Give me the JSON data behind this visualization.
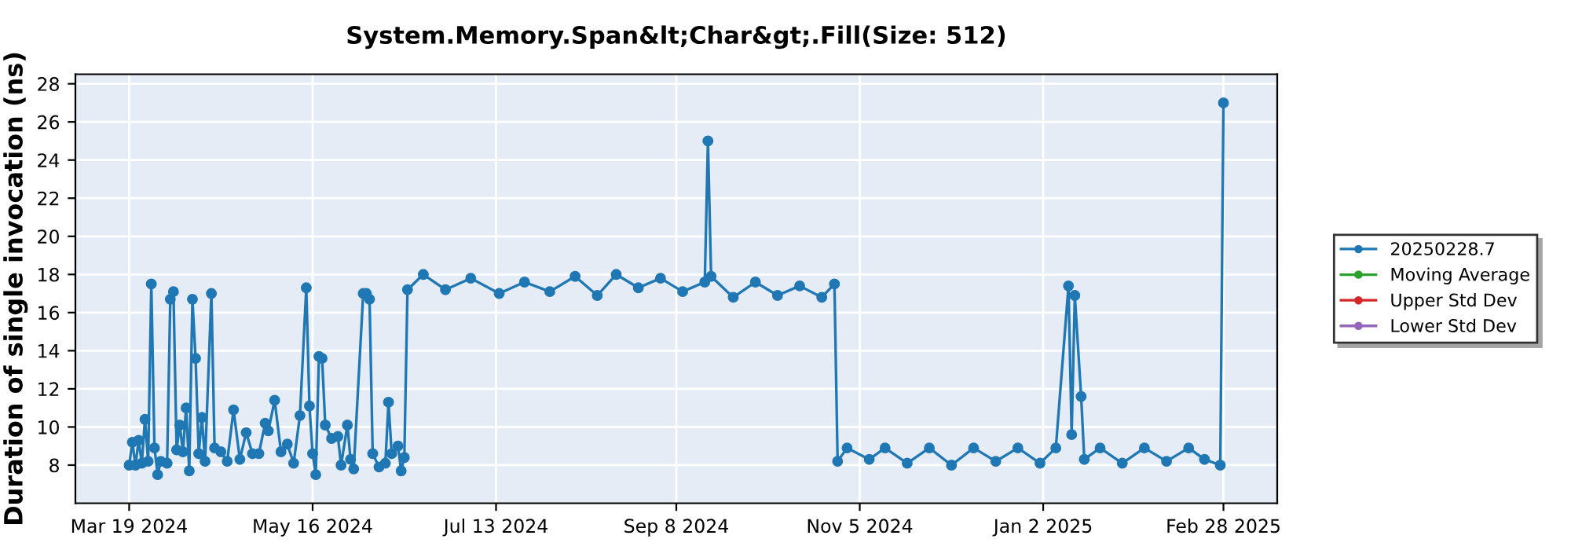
{
  "chart_data": {
    "type": "line",
    "title": "System.Memory.Span&lt;Char&gt;.Fill(Size: 512)",
    "ylabel": "Duration of single invocation (ns)",
    "xlim": [
      "2024-03-02",
      "2025-03-17"
    ],
    "ylim": [
      6,
      28.5
    ],
    "xticks": [
      {
        "value": "2024-03-19",
        "label": "Mar 19 2024"
      },
      {
        "value": "2024-05-16",
        "label": "May 16 2024"
      },
      {
        "value": "2024-07-13",
        "label": "Jul 13 2024"
      },
      {
        "value": "2024-09-08",
        "label": "Sep 8 2024"
      },
      {
        "value": "2024-11-05",
        "label": "Nov 5 2024"
      },
      {
        "value": "2025-01-02",
        "label": "Jan 2 2025"
      },
      {
        "value": "2025-02-28",
        "label": "Feb 28 2025"
      }
    ],
    "yticks": [
      8,
      10,
      12,
      14,
      16,
      18,
      20,
      22,
      24,
      26,
      28
    ],
    "grid": true,
    "legend": "right",
    "marker": "circle",
    "line_style": "solid",
    "series": [
      {
        "name": "20250228.7",
        "color": "#1f77b4",
        "x": [
          "2024-03-19",
          "2024-03-20",
          "2024-03-21",
          "2024-03-22",
          "2024-03-23",
          "2024-03-24",
          "2024-03-25",
          "2024-03-26",
          "2024-03-27",
          "2024-03-28",
          "2024-03-29",
          "2024-03-31",
          "2024-04-01",
          "2024-04-02",
          "2024-04-03",
          "2024-04-04",
          "2024-04-05",
          "2024-04-06",
          "2024-04-07",
          "2024-04-08",
          "2024-04-09",
          "2024-04-10",
          "2024-04-11",
          "2024-04-12",
          "2024-04-14",
          "2024-04-15",
          "2024-04-17",
          "2024-04-19",
          "2024-04-21",
          "2024-04-23",
          "2024-04-25",
          "2024-04-27",
          "2024-04-29",
          "2024-05-01",
          "2024-05-02",
          "2024-05-04",
          "2024-05-06",
          "2024-05-08",
          "2024-05-10",
          "2024-05-12",
          "2024-05-14",
          "2024-05-15",
          "2024-05-16",
          "2024-05-17",
          "2024-05-18",
          "2024-05-19",
          "2024-05-20",
          "2024-05-22",
          "2024-05-24",
          "2024-05-25",
          "2024-05-27",
          "2024-05-28",
          "2024-05-29",
          "2024-06-01",
          "2024-06-02",
          "2024-06-03",
          "2024-06-04",
          "2024-06-06",
          "2024-06-08",
          "2024-06-09",
          "2024-06-10",
          "2024-06-12",
          "2024-06-13",
          "2024-06-14",
          "2024-06-15",
          "2024-06-20",
          "2024-06-27",
          "2024-07-05",
          "2024-07-14",
          "2024-07-22",
          "2024-07-30",
          "2024-08-07",
          "2024-08-14",
          "2024-08-20",
          "2024-08-27",
          "2024-09-03",
          "2024-09-10",
          "2024-09-17",
          "2024-09-18",
          "2024-09-19",
          "2024-09-26",
          "2024-10-03",
          "2024-10-10",
          "2024-10-17",
          "2024-10-24",
          "2024-10-28",
          "2024-10-29",
          "2024-11-01",
          "2024-11-08",
          "2024-11-13",
          "2024-11-20",
          "2024-11-27",
          "2024-12-04",
          "2024-12-11",
          "2024-12-18",
          "2024-12-25",
          "2025-01-01",
          "2025-01-06",
          "2025-01-10",
          "2025-01-11",
          "2025-01-12",
          "2025-01-14",
          "2025-01-15",
          "2025-01-20",
          "2025-01-27",
          "2025-02-03",
          "2025-02-10",
          "2025-02-17",
          "2025-02-22",
          "2025-02-27",
          "2025-02-28"
        ],
        "values": [
          8.0,
          9.2,
          8.0,
          9.3,
          8.1,
          10.4,
          8.2,
          17.5,
          8.9,
          7.5,
          8.2,
          8.1,
          16.7,
          17.1,
          8.8,
          10.1,
          8.7,
          11.0,
          7.7,
          16.7,
          13.6,
          8.6,
          10.5,
          8.2,
          17.0,
          8.9,
          8.7,
          8.2,
          10.9,
          8.3,
          9.7,
          8.6,
          8.6,
          10.2,
          9.8,
          11.4,
          8.7,
          9.1,
          8.1,
          10.6,
          17.3,
          11.1,
          8.6,
          7.5,
          13.7,
          13.6,
          10.1,
          9.4,
          9.5,
          8.0,
          10.1,
          8.3,
          7.8,
          17.0,
          17.0,
          16.7,
          8.6,
          7.9,
          8.1,
          11.3,
          8.6,
          9.0,
          7.7,
          8.4,
          17.2,
          18.0,
          17.2,
          17.8,
          17.0,
          17.6,
          17.1,
          17.9,
          16.9,
          18.0,
          17.3,
          17.8,
          17.1,
          17.6,
          25.0,
          17.9,
          16.8,
          17.6,
          16.9,
          17.4,
          16.8,
          17.5,
          8.2,
          8.9,
          8.3,
          8.9,
          8.1,
          8.9,
          8.0,
          8.9,
          8.2,
          8.9,
          8.1,
          8.9,
          17.4,
          9.6,
          16.9,
          11.6,
          8.3,
          8.9,
          8.1,
          8.9,
          8.2,
          8.9,
          8.3,
          8.0,
          27.0
        ]
      },
      {
        "name": "Moving Average",
        "color": "#2ca02c"
      },
      {
        "name": "Upper Std Dev",
        "color": "#d62728"
      },
      {
        "name": "Lower Std Dev",
        "color": "#9467bd"
      }
    ]
  }
}
